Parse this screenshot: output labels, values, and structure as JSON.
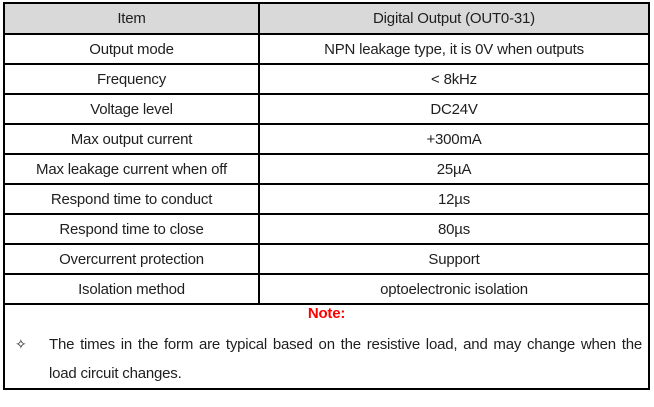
{
  "colors": {
    "header_bg": "#d9d9d9",
    "border": "#000000",
    "text": "#1f1f1f",
    "note_label": "#ff0000"
  },
  "table": {
    "header": {
      "item": "Item",
      "value": "Digital Output (OUT0-31)"
    },
    "rows": [
      {
        "item": "Output mode",
        "value": "NPN leakage type, it is 0V when outputs"
      },
      {
        "item": "Frequency",
        "value": "< 8kHz"
      },
      {
        "item": "Voltage level",
        "value": "DC24V"
      },
      {
        "item": "Max output current",
        "value": "+300mA"
      },
      {
        "item": "Max leakage current when off",
        "value": "25µA"
      },
      {
        "item": "Respond time to conduct",
        "value": "12µs"
      },
      {
        "item": "Respond time to close",
        "value": "80µs"
      },
      {
        "item": "Overcurrent protection",
        "value": "Support"
      },
      {
        "item": "Isolation method",
        "value": "optoelectronic isolation"
      }
    ]
  },
  "note": {
    "label": "Note:",
    "bullet_icon": "✧",
    "text": "The times in the form are typical based on the resistive load, and may change when the load circuit changes."
  }
}
